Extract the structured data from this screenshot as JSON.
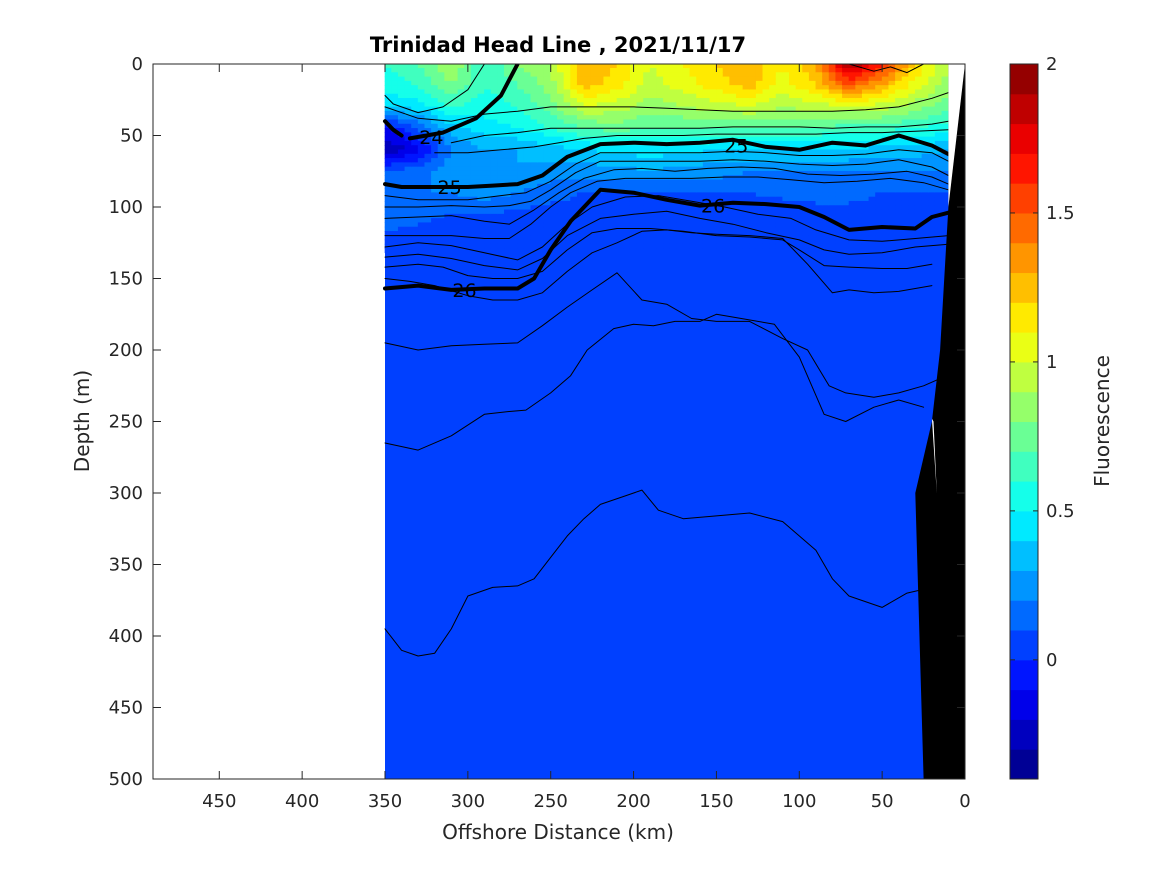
{
  "chart_data": {
    "type": "heatmap",
    "title": "Trinidad Head Line , 2021/11/17",
    "xlabel": "Offshore Distance (km)",
    "ylabel": "Depth (m)",
    "xlim": [
      490,
      0
    ],
    "ylim": [
      0,
      500
    ],
    "x_ticks": [
      "450",
      "400",
      "350",
      "300",
      "250",
      "200",
      "150",
      "100",
      "50",
      "0"
    ],
    "y_ticks": [
      "0",
      "50",
      "100",
      "150",
      "200",
      "250",
      "300",
      "350",
      "400",
      "450",
      "500"
    ],
    "x_tick_values": [
      450,
      400,
      350,
      300,
      250,
      200,
      150,
      100,
      50,
      0
    ],
    "y_tick_values": [
      0,
      50,
      100,
      150,
      200,
      250,
      300,
      350,
      400,
      450,
      500
    ],
    "data_extent_km": [
      350,
      10
    ],
    "colorbar": {
      "label": "Fluorescence",
      "range": [
        -0.4,
        2
      ],
      "ticks": [
        "0",
        "0.5",
        "1",
        "1.5",
        "2"
      ],
      "tick_values": [
        0,
        0.5,
        1,
        1.5,
        2
      ],
      "colormap": "jet"
    },
    "background_fluorescence": 0.05,
    "surface_fluorescence_layers": [
      {
        "depth": 0,
        "x": [
          350,
          330,
          310,
          290,
          270,
          250,
          230,
          210,
          190,
          170,
          150,
          130,
          110,
          90,
          70,
          50,
          30,
          10
        ],
        "values": [
          0.6,
          0.7,
          0.9,
          0.6,
          0.8,
          0.9,
          1.3,
          1.2,
          1.0,
          1.1,
          1.2,
          1.3,
          1.1,
          1.3,
          1.95,
          1.6,
          1.2,
          0.9
        ]
      },
      {
        "depth": 15,
        "x": [
          350,
          330,
          310,
          290,
          270,
          250,
          230,
          210,
          190,
          170,
          150,
          130,
          110,
          90,
          70,
          50,
          30,
          10
        ],
        "values": [
          0.55,
          0.6,
          0.8,
          0.6,
          0.7,
          0.85,
          1.25,
          1.15,
          0.95,
          1.05,
          1.15,
          1.25,
          1.05,
          1.2,
          1.5,
          1.3,
          1.05,
          0.85
        ]
      },
      {
        "depth": 30,
        "x": [
          350,
          330,
          310,
          290,
          270,
          250,
          230,
          210,
          190,
          170,
          150,
          130,
          110,
          90,
          70,
          50,
          30,
          10
        ],
        "values": [
          0.4,
          0.45,
          0.6,
          0.55,
          0.6,
          0.75,
          1.0,
          0.95,
          0.85,
          0.9,
          0.95,
          1.0,
          0.9,
          0.95,
          1.0,
          0.95,
          0.85,
          0.75
        ]
      },
      {
        "depth": 45,
        "x": [
          350,
          330,
          310,
          290,
          270,
          250,
          230,
          210,
          190,
          170,
          150,
          130,
          110,
          90,
          70,
          50,
          30,
          10
        ],
        "values": [
          -0.1,
          0.1,
          0.35,
          0.45,
          0.5,
          0.6,
          0.7,
          0.75,
          0.7,
          0.7,
          0.7,
          0.7,
          0.7,
          0.7,
          0.65,
          0.65,
          0.6,
          0.55
        ]
      },
      {
        "depth": 60,
        "x": [
          350,
          330,
          310,
          290,
          270,
          250,
          230,
          210,
          190,
          170,
          150,
          130,
          110,
          90,
          70,
          50,
          30,
          10
        ],
        "values": [
          -0.3,
          -0.15,
          0.2,
          0.3,
          0.3,
          0.35,
          0.4,
          0.45,
          0.45,
          0.45,
          0.4,
          0.4,
          0.4,
          0.4,
          0.4,
          0.35,
          0.35,
          0.3
        ]
      },
      {
        "depth": 75,
        "x": [
          350,
          330,
          310,
          290,
          270,
          250,
          230,
          210,
          190,
          170,
          150,
          130,
          110,
          90,
          70,
          50,
          30,
          10
        ],
        "values": [
          0.1,
          0.15,
          0.25,
          0.25,
          0.3,
          0.25,
          0.25,
          0.25,
          0.3,
          0.25,
          0.25,
          0.2,
          0.2,
          0.2,
          0.2,
          0.2,
          0.2,
          0.2
        ]
      },
      {
        "depth": 90,
        "x": [
          350,
          330,
          310,
          290,
          270,
          250,
          230,
          210,
          190,
          170,
          150,
          130,
          110,
          90,
          70,
          50,
          30,
          10
        ],
        "values": [
          0.2,
          0.2,
          0.2,
          0.25,
          0.2,
          0.15,
          0.1,
          0.1,
          0.1,
          0.1,
          0.1,
          0.1,
          0.12,
          0.15,
          0.15,
          0.1,
          0.1,
          0.1
        ]
      },
      {
        "depth": 105,
        "x": [
          350,
          330,
          310,
          290,
          270,
          250,
          230,
          210,
          190,
          170,
          150,
          130,
          110,
          90,
          70,
          50,
          30,
          10
        ],
        "values": [
          0.15,
          0.12,
          0.1,
          0.1,
          0.08,
          0.05,
          0.05,
          0.05,
          0.05,
          0.05,
          0.05,
          0.05,
          0.05,
          0.05,
          0.05,
          0.05,
          0.05,
          0.05
        ]
      },
      {
        "depth": 130,
        "x": [
          350,
          10
        ],
        "values": [
          0.05,
          0.05
        ]
      }
    ],
    "contours": [
      {
        "level": 24,
        "style": "bold",
        "x": [
          270,
          280,
          295,
          315,
          325,
          335
        ],
        "y": [
          0,
          22,
          38,
          48,
          50,
          52
        ]
      },
      {
        "level": 24,
        "style": "bold",
        "x": [
          350,
          345,
          340
        ],
        "y": [
          40,
          46,
          50
        ]
      },
      {
        "level": 25,
        "style": "bold",
        "x": [
          350,
          340,
          320,
          300,
          285,
          270,
          255,
          240,
          220,
          200,
          180,
          160,
          140,
          120,
          100,
          80,
          60,
          40,
          20,
          10
        ],
        "y": [
          84,
          86,
          86,
          86,
          85,
          84,
          78,
          65,
          56,
          55,
          56,
          55,
          53,
          58,
          60,
          55,
          57,
          50,
          57,
          63
        ]
      },
      {
        "level": 26,
        "style": "bold",
        "x": [
          350,
          330,
          310,
          290,
          270,
          260,
          250,
          238,
          220,
          200,
          180,
          160,
          140,
          120,
          100,
          85,
          70,
          50,
          30,
          20,
          10
        ],
        "y": [
          157,
          155,
          158,
          157,
          157,
          150,
          130,
          110,
          88,
          90,
          95,
          99,
          97,
          98,
          100,
          107,
          116,
          114,
          115,
          107,
          104
        ]
      },
      {
        "level": 23.8,
        "style": "thin",
        "x": [
          290,
          300,
          315,
          330,
          345,
          350
        ],
        "y": [
          0,
          18,
          30,
          34,
          28,
          22
        ]
      },
      {
        "level": 23.8,
        "style": "thin",
        "x": [
          70,
          55,
          45,
          35,
          25
        ],
        "y": [
          0,
          5,
          2,
          6,
          0
        ]
      },
      {
        "level": 24.2,
        "style": "thin",
        "x": [
          350,
          330,
          310,
          290,
          270,
          250,
          235,
          220,
          200,
          180,
          160,
          140,
          120,
          100,
          80,
          60,
          40,
          20,
          10
        ],
        "y": [
          30,
          38,
          40,
          35,
          33,
          30,
          30,
          30,
          30,
          31,
          32,
          33,
          33,
          33,
          33,
          32,
          30,
          24,
          20
        ]
      },
      {
        "level": 24.6,
        "style": "thin",
        "x": [
          310,
          290,
          270,
          250,
          235,
          220,
          200,
          180,
          160,
          140,
          120,
          100,
          80,
          60,
          40,
          20,
          10
        ],
        "y": [
          55,
          50,
          48,
          45,
          45,
          45,
          45,
          45,
          45,
          44,
          44,
          44,
          45,
          44,
          44,
          42,
          40
        ]
      },
      {
        "level": 24.8,
        "style": "thin",
        "x": [
          320,
          300,
          280,
          260,
          245,
          230,
          210,
          190,
          170,
          150,
          130,
          110,
          90,
          70,
          50,
          30,
          10
        ],
        "y": [
          62,
          62,
          60,
          58,
          55,
          52,
          50,
          50,
          50,
          49,
          49,
          49,
          49,
          48,
          48,
          47,
          46
        ]
      },
      {
        "level": 25.2,
        "style": "thin",
        "x": [
          350,
          330,
          300,
          280,
          265,
          250,
          235,
          220,
          200,
          180,
          160,
          140,
          120,
          100,
          80,
          60,
          40,
          20,
          10
        ],
        "y": [
          92,
          95,
          95,
          92,
          90,
          82,
          70,
          62,
          62,
          62,
          62,
          61,
          62,
          64,
          64,
          63,
          60,
          62,
          68
        ]
      },
      {
        "level": 25.4,
        "style": "thin",
        "x": [
          350,
          330,
          310,
          290,
          275,
          262,
          250,
          235,
          220,
          200,
          180,
          160,
          140,
          120,
          100,
          80,
          60,
          40,
          20,
          10
        ],
        "y": [
          100,
          100,
          99,
          100,
          99,
          96,
          88,
          76,
          68,
          68,
          68,
          68,
          67,
          68,
          70,
          71,
          70,
          67,
          72,
          78
        ]
      },
      {
        "level": 25.6,
        "style": "thin",
        "x": [
          350,
          330,
          310,
          290,
          275,
          260,
          245,
          230,
          212,
          195,
          175,
          155,
          135,
          115,
          95,
          75,
          55,
          35,
          20,
          10
        ],
        "y": [
          108,
          107,
          106,
          110,
          112,
          102,
          90,
          80,
          74,
          73,
          75,
          73,
          72,
          73,
          77,
          78,
          77,
          75,
          79,
          84
        ]
      },
      {
        "level": 25.8,
        "style": "thin",
        "x": [
          350,
          330,
          310,
          290,
          275,
          262,
          250,
          238,
          222,
          205,
          185,
          165,
          145,
          125,
          105,
          85,
          65,
          45,
          25,
          10
        ],
        "y": [
          120,
          120,
          120,
          122,
          122,
          112,
          100,
          90,
          82,
          80,
          80,
          80,
          79,
          79,
          81,
          83,
          82,
          80,
          83,
          88
        ]
      },
      {
        "level": 26.1,
        "style": "thin",
        "x": [
          350,
          330,
          310,
          290,
          270,
          255,
          240,
          225,
          205,
          185,
          165,
          145,
          125,
          105,
          90,
          70,
          50,
          30,
          10
        ],
        "y": [
          128,
          125,
          127,
          132,
          137,
          128,
          112,
          100,
          93,
          92,
          96,
          100,
          105,
          108,
          116,
          123,
          124,
          122,
          120
        ]
      },
      {
        "level": 26.2,
        "style": "thin",
        "x": [
          350,
          330,
          310,
          290,
          270,
          255,
          240,
          220,
          200,
          180,
          160,
          140,
          120,
          100,
          85,
          70,
          50,
          30,
          10
        ],
        "y": [
          135,
          133,
          136,
          141,
          144,
          136,
          120,
          108,
          105,
          103,
          108,
          112,
          118,
          123,
          130,
          133,
          132,
          128,
          126
        ]
      },
      {
        "level": 26.3,
        "style": "thin",
        "x": [
          350,
          330,
          315,
          300,
          285,
          270,
          255,
          240,
          225,
          210,
          190,
          170,
          150,
          130,
          110,
          100,
          85,
          70,
          50,
          35,
          20
        ],
        "y": [
          142,
          140,
          142,
          148,
          150,
          150,
          145,
          130,
          118,
          115,
          115,
          117,
          120,
          121,
          123,
          130,
          141,
          142,
          143,
          143,
          140
        ]
      },
      {
        "level": 26.4,
        "style": "thin",
        "x": [
          350,
          335,
          320,
          300,
          285,
          270,
          255,
          240,
          225,
          210,
          195,
          180,
          165,
          150,
          130,
          110,
          95,
          80,
          70,
          55,
          40,
          20
        ],
        "y": [
          150,
          152,
          155,
          162,
          165,
          165,
          160,
          145,
          132,
          125,
          117,
          116,
          118,
          119,
          120,
          122,
          140,
          160,
          158,
          160,
          159,
          155
        ]
      },
      {
        "level": 26.5,
        "style": "thin",
        "x": [
          350,
          330,
          310,
          290,
          270,
          255,
          240,
          225,
          210,
          195,
          180,
          165,
          150,
          130,
          110,
          95,
          82,
          72,
          55,
          40,
          25,
          15
        ],
        "y": [
          195,
          200,
          197,
          196,
          195,
          183,
          170,
          158,
          146,
          165,
          168,
          178,
          180,
          180,
          192,
          200,
          225,
          230,
          233,
          230,
          225,
          220
        ]
      },
      {
        "level": 26.6,
        "style": "thin",
        "x": [
          350,
          330,
          310,
          290,
          275,
          265,
          250,
          238,
          228,
          212,
          200,
          188,
          175,
          160,
          150,
          135,
          115,
          100,
          85,
          72,
          55,
          40,
          25
        ],
        "y": [
          265,
          270,
          260,
          245,
          243,
          242,
          230,
          218,
          200,
          185,
          182,
          183,
          180,
          180,
          175,
          178,
          182,
          205,
          245,
          250,
          240,
          235,
          240
        ]
      },
      {
        "level": 26.7,
        "style": "thin",
        "x": [
          350,
          340,
          330,
          320,
          310,
          300,
          285,
          270,
          260,
          250,
          240,
          230,
          220,
          205,
          195,
          185,
          170,
          150,
          130,
          110,
          90,
          80,
          70,
          50,
          35,
          20
        ],
        "y": [
          395,
          410,
          414,
          412,
          395,
          372,
          366,
          365,
          360,
          345,
          330,
          318,
          308,
          302,
          298,
          312,
          318,
          316,
          314,
          320,
          340,
          360,
          372,
          380,
          370,
          366
        ]
      }
    ],
    "contour_labels": [
      {
        "text": "24",
        "x": 322,
        "y": 51
      },
      {
        "text": "25",
        "x": 311,
        "y": 86
      },
      {
        "text": "25",
        "x": 138,
        "y": 57
      },
      {
        "text": "26",
        "x": 152,
        "y": 99
      },
      {
        "text": "26",
        "x": 302,
        "y": 158
      }
    ],
    "bathymetry": {
      "color": "#000000",
      "x": [
        0,
        0,
        25,
        30,
        20,
        15,
        10,
        10
      ],
      "y": [
        0,
        500,
        500,
        300,
        250,
        200,
        100,
        0
      ]
    },
    "bathymetry_small_white": {
      "x": [
        20,
        17,
        19
      ],
      "y": [
        248,
        300,
        250
      ]
    }
  }
}
